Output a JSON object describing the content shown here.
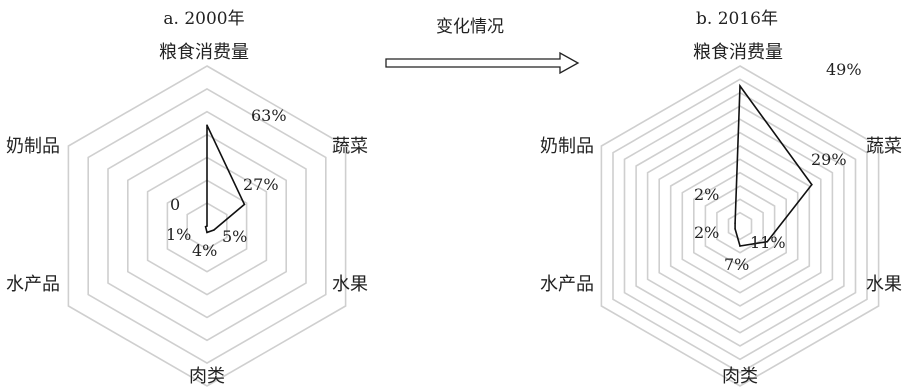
{
  "transition": {
    "label": "变化情况"
  },
  "chart_data": [
    {
      "type": "radar",
      "title": "a. 2000年",
      "categories": [
        "粮食消费量",
        "蔬菜",
        "水果",
        "肉类",
        "水产品",
        "奶制品"
      ],
      "values": [
        63,
        27,
        5,
        4,
        1,
        0
      ],
      "value_labels": [
        "63%",
        "27%",
        "5%",
        "4%",
        "1%",
        "0"
      ],
      "rmax": 100,
      "rings": 7
    },
    {
      "type": "radar",
      "title": "b. 2016年",
      "categories": [
        "粮食消费量",
        "蔬菜",
        "水果",
        "肉类",
        "水产品",
        "奶制品"
      ],
      "values": [
        49,
        29,
        11,
        7,
        2,
        2
      ],
      "value_labels": [
        "49%",
        "29%",
        "11%",
        "7%",
        "2%",
        "2%"
      ],
      "rmax": 56,
      "rings": 12
    }
  ]
}
